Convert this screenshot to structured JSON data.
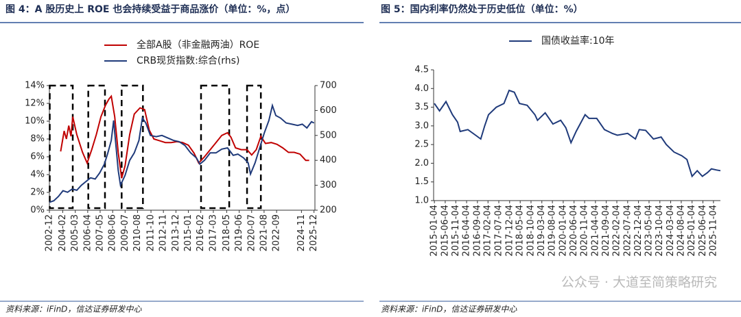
{
  "chart_data": [
    {
      "type": "line",
      "title": "图 4：A 股历史上 ROE 也会持续受益于商品涨价（单位：%，点）",
      "xlim": [
        2002.92,
        2026.0
      ],
      "xticks": [
        {
          "value": 2002.92,
          "label": "2002-12"
        },
        {
          "value": 2004.08,
          "label": "2004-02"
        },
        {
          "value": 2005.17,
          "label": "2005-03"
        },
        {
          "value": 2006.25,
          "label": "2006-04"
        },
        {
          "value": 2007.33,
          "label": "2007-05"
        },
        {
          "value": 2008.42,
          "label": "2008-06"
        },
        {
          "value": 2009.5,
          "label": "2009-07"
        },
        {
          "value": 2010.58,
          "label": "2010-08"
        },
        {
          "value": 2011.75,
          "label": "2011-10"
        },
        {
          "value": 2012.83,
          "label": "2012-11"
        },
        {
          "value": 2013.92,
          "label": "2013-12"
        },
        {
          "value": 2015.0,
          "label": "2015-01"
        },
        {
          "value": 2016.08,
          "label": "2016-02"
        },
        {
          "value": 2017.17,
          "label": "2017-03"
        },
        {
          "value": 2018.33,
          "label": "2018-05"
        },
        {
          "value": 2019.42,
          "label": "2019-06"
        },
        {
          "value": 2020.5,
          "label": "2020-07"
        },
        {
          "value": 2021.58,
          "label": "2021-08"
        },
        {
          "value": 2022.67,
          "label": "2022-09"
        },
        {
          "value": 2024.83,
          "label": "2024-11"
        },
        {
          "value": 2025.92,
          "label": "2025-12"
        }
      ],
      "ylim": [
        0,
        14
      ],
      "yticks": [
        {
          "value": 0,
          "label": "0%"
        },
        {
          "value": 2,
          "label": "2%"
        },
        {
          "value": 4,
          "label": "4%"
        },
        {
          "value": 6,
          "label": "6%"
        },
        {
          "value": 8,
          "label": "8%"
        },
        {
          "value": 10,
          "label": "10%"
        },
        {
          "value": 12,
          "label": "12%"
        },
        {
          "value": 14,
          "label": "14%"
        }
      ],
      "y2lim": [
        200,
        700
      ],
      "y2ticks": [
        200,
        300,
        400,
        500,
        600,
        700
      ],
      "highlight_periods": [
        [
          2002.95,
          2004.95
        ],
        [
          2006.3,
          2007.75
        ],
        [
          2009.2,
          2011.05
        ],
        [
          2016.1,
          2018.55
        ],
        [
          2020.1,
          2021.3
        ]
      ],
      "series": [
        {
          "name": "全部A股（非金融两油）ROE",
          "color": "#c00000",
          "x": [
            2003.9,
            2004.2,
            2004.4,
            2004.6,
            2004.8,
            2004.95,
            2005.3,
            2005.8,
            2006.2,
            2006.6,
            2007.0,
            2007.4,
            2007.8,
            2008.1,
            2008.3,
            2008.6,
            2008.9,
            2009.2,
            2009.5,
            2009.9,
            2010.3,
            2010.8,
            2011.2,
            2011.6,
            2012.0,
            2012.5,
            2013.0,
            2013.5,
            2014.0,
            2014.5,
            2015.0,
            2015.5,
            2015.9,
            2016.4,
            2016.9,
            2017.4,
            2017.9,
            2018.4,
            2018.7,
            2019.1,
            2019.6,
            2020.1,
            2020.5,
            2020.9,
            2021.3,
            2021.7,
            2022.2,
            2022.7,
            2023.2,
            2023.7,
            2024.2,
            2024.7,
            2025.2,
            2025.5
          ],
          "values": [
            6.6,
            8.9,
            8.0,
            9.5,
            8.3,
            10.5,
            8.5,
            6.5,
            5.3,
            6.8,
            8.5,
            10.5,
            11.8,
            12.5,
            12.8,
            10.5,
            6.5,
            3.6,
            5.0,
            8.5,
            10.8,
            11.5,
            11.3,
            9.0,
            8.0,
            7.8,
            7.6,
            7.6,
            7.7,
            7.6,
            7.3,
            6.4,
            5.3,
            6.0,
            6.8,
            7.6,
            8.4,
            8.7,
            8.2,
            7.0,
            6.8,
            6.8,
            6.2,
            6.8,
            8.3,
            7.5,
            7.6,
            7.4,
            7.0,
            6.5,
            6.5,
            6.3,
            5.6,
            5.6
          ]
        },
        {
          "name": "CRB现货指数:综合(rhs)",
          "color": "#1f3a7a",
          "axis": "y2",
          "x": [
            2002.92,
            2003.3,
            2003.7,
            2004.1,
            2004.5,
            2004.9,
            2005.3,
            2005.7,
            2006.1,
            2006.5,
            2006.9,
            2007.3,
            2007.7,
            2008.0,
            2008.3,
            2008.5,
            2008.9,
            2009.1,
            2009.5,
            2009.9,
            2010.3,
            2010.7,
            2011.0,
            2011.3,
            2011.7,
            2012.2,
            2012.7,
            2013.2,
            2013.7,
            2014.2,
            2014.7,
            2015.2,
            2015.7,
            2016.0,
            2016.4,
            2016.9,
            2017.4,
            2017.9,
            2018.4,
            2018.9,
            2019.3,
            2019.8,
            2020.2,
            2020.4,
            2020.8,
            2021.2,
            2021.6,
            2022.0,
            2022.3,
            2022.6,
            2023.0,
            2023.5,
            2024.0,
            2024.5,
            2024.9,
            2025.3,
            2025.7,
            2025.92
          ],
          "values": [
            232,
            238,
            255,
            278,
            272,
            285,
            280,
            300,
            315,
            330,
            325,
            350,
            385,
            430,
            480,
            560,
            360,
            300,
            340,
            400,
            430,
            480,
            570,
            550,
            500,
            495,
            500,
            490,
            480,
            475,
            460,
            430,
            410,
            385,
            400,
            430,
            430,
            445,
            450,
            420,
            425,
            410,
            390,
            345,
            390,
            450,
            510,
            560,
            620,
            580,
            570,
            550,
            545,
            540,
            545,
            530,
            555,
            550
          ]
        }
      ],
      "source": "资料来源：iFinD，信达证券研发中心"
    },
    {
      "type": "line",
      "title": "图 5：国内利率仍然处于历史低位（单位：%）",
      "xlim": [
        2014.97,
        2026.1
      ],
      "xticks": [
        {
          "value": 2015.0,
          "label": "2015-01-04"
        },
        {
          "value": 2015.42,
          "label": "2015-06-04"
        },
        {
          "value": 2015.83,
          "label": "2015-11-04"
        },
        {
          "value": 2016.25,
          "label": "2016-04-04"
        },
        {
          "value": 2016.67,
          "label": "2016-09-04"
        },
        {
          "value": 2017.08,
          "label": "2017-02-04"
        },
        {
          "value": 2017.5,
          "label": "2017-07-04"
        },
        {
          "value": 2017.92,
          "label": "2017-12-04"
        },
        {
          "value": 2018.33,
          "label": "2018-05-04"
        },
        {
          "value": 2018.75,
          "label": "2018-10-04"
        },
        {
          "value": 2019.17,
          "label": "2019-03-04"
        },
        {
          "value": 2019.58,
          "label": "2019-08-04"
        },
        {
          "value": 2020.0,
          "label": "2020-01-04"
        },
        {
          "value": 2020.42,
          "label": "2020-06-04"
        },
        {
          "value": 2020.83,
          "label": "2020-11-04"
        },
        {
          "value": 2021.25,
          "label": "2021-04-04"
        },
        {
          "value": 2021.67,
          "label": "2021-09-04"
        },
        {
          "value": 2022.08,
          "label": "2022-02-04"
        },
        {
          "value": 2022.5,
          "label": "2022-07-04"
        },
        {
          "value": 2022.92,
          "label": "2022-12-04"
        },
        {
          "value": 2023.33,
          "label": "2023-05-04"
        },
        {
          "value": 2023.75,
          "label": "2023-10-04"
        },
        {
          "value": 2024.17,
          "label": "2024-03-04"
        },
        {
          "value": 2024.58,
          "label": "2024-08-04"
        },
        {
          "value": 2025.0,
          "label": "2025-01-04"
        },
        {
          "value": 2025.42,
          "label": "2025-06-04"
        },
        {
          "value": 2025.83,
          "label": "2025-11-04"
        }
      ],
      "ylim": [
        1.0,
        4.5
      ],
      "yticks": [
        {
          "value": 1.0,
          "label": "1.0"
        },
        1.5,
        {
          "value": 2.0,
          "label": "2.0"
        },
        2.5,
        {
          "value": 3.0,
          "label": "3.0"
        },
        3.5,
        {
          "value": 4.0,
          "label": "4.0"
        },
        4.5
      ],
      "series": [
        {
          "name": "国债收益率:10年",
          "color": "#1f3a7a",
          "x": [
            2015.0,
            2015.2,
            2015.45,
            2015.7,
            2015.9,
            2016.0,
            2016.3,
            2016.6,
            2016.8,
            2016.95,
            2017.1,
            2017.4,
            2017.7,
            2017.9,
            2018.1,
            2018.3,
            2018.6,
            2018.9,
            2019.0,
            2019.3,
            2019.6,
            2019.9,
            2020.1,
            2020.3,
            2020.5,
            2020.85,
            2021.0,
            2021.3,
            2021.6,
            2021.9,
            2022.1,
            2022.5,
            2022.8,
            2022.95,
            2023.2,
            2023.5,
            2023.8,
            2024.0,
            2024.3,
            2024.6,
            2024.8,
            2025.0,
            2025.2,
            2025.4,
            2025.6,
            2025.75,
            2025.95,
            2026.1
          ],
          "values": [
            3.6,
            3.4,
            3.65,
            3.3,
            3.1,
            2.85,
            2.9,
            2.75,
            2.65,
            3.0,
            3.3,
            3.5,
            3.6,
            3.95,
            3.9,
            3.6,
            3.55,
            3.3,
            3.15,
            3.35,
            3.05,
            3.15,
            2.95,
            2.55,
            2.85,
            3.3,
            3.2,
            3.2,
            2.9,
            2.8,
            2.75,
            2.8,
            2.65,
            2.9,
            2.88,
            2.65,
            2.7,
            2.5,
            2.3,
            2.2,
            2.1,
            1.65,
            1.8,
            1.65,
            1.75,
            1.85,
            1.82,
            1.8
          ]
        }
      ],
      "source": "资料来源：iFinD，信达证券研发中心"
    }
  ],
  "watermark": "公众号 · 大道至简策略研究"
}
